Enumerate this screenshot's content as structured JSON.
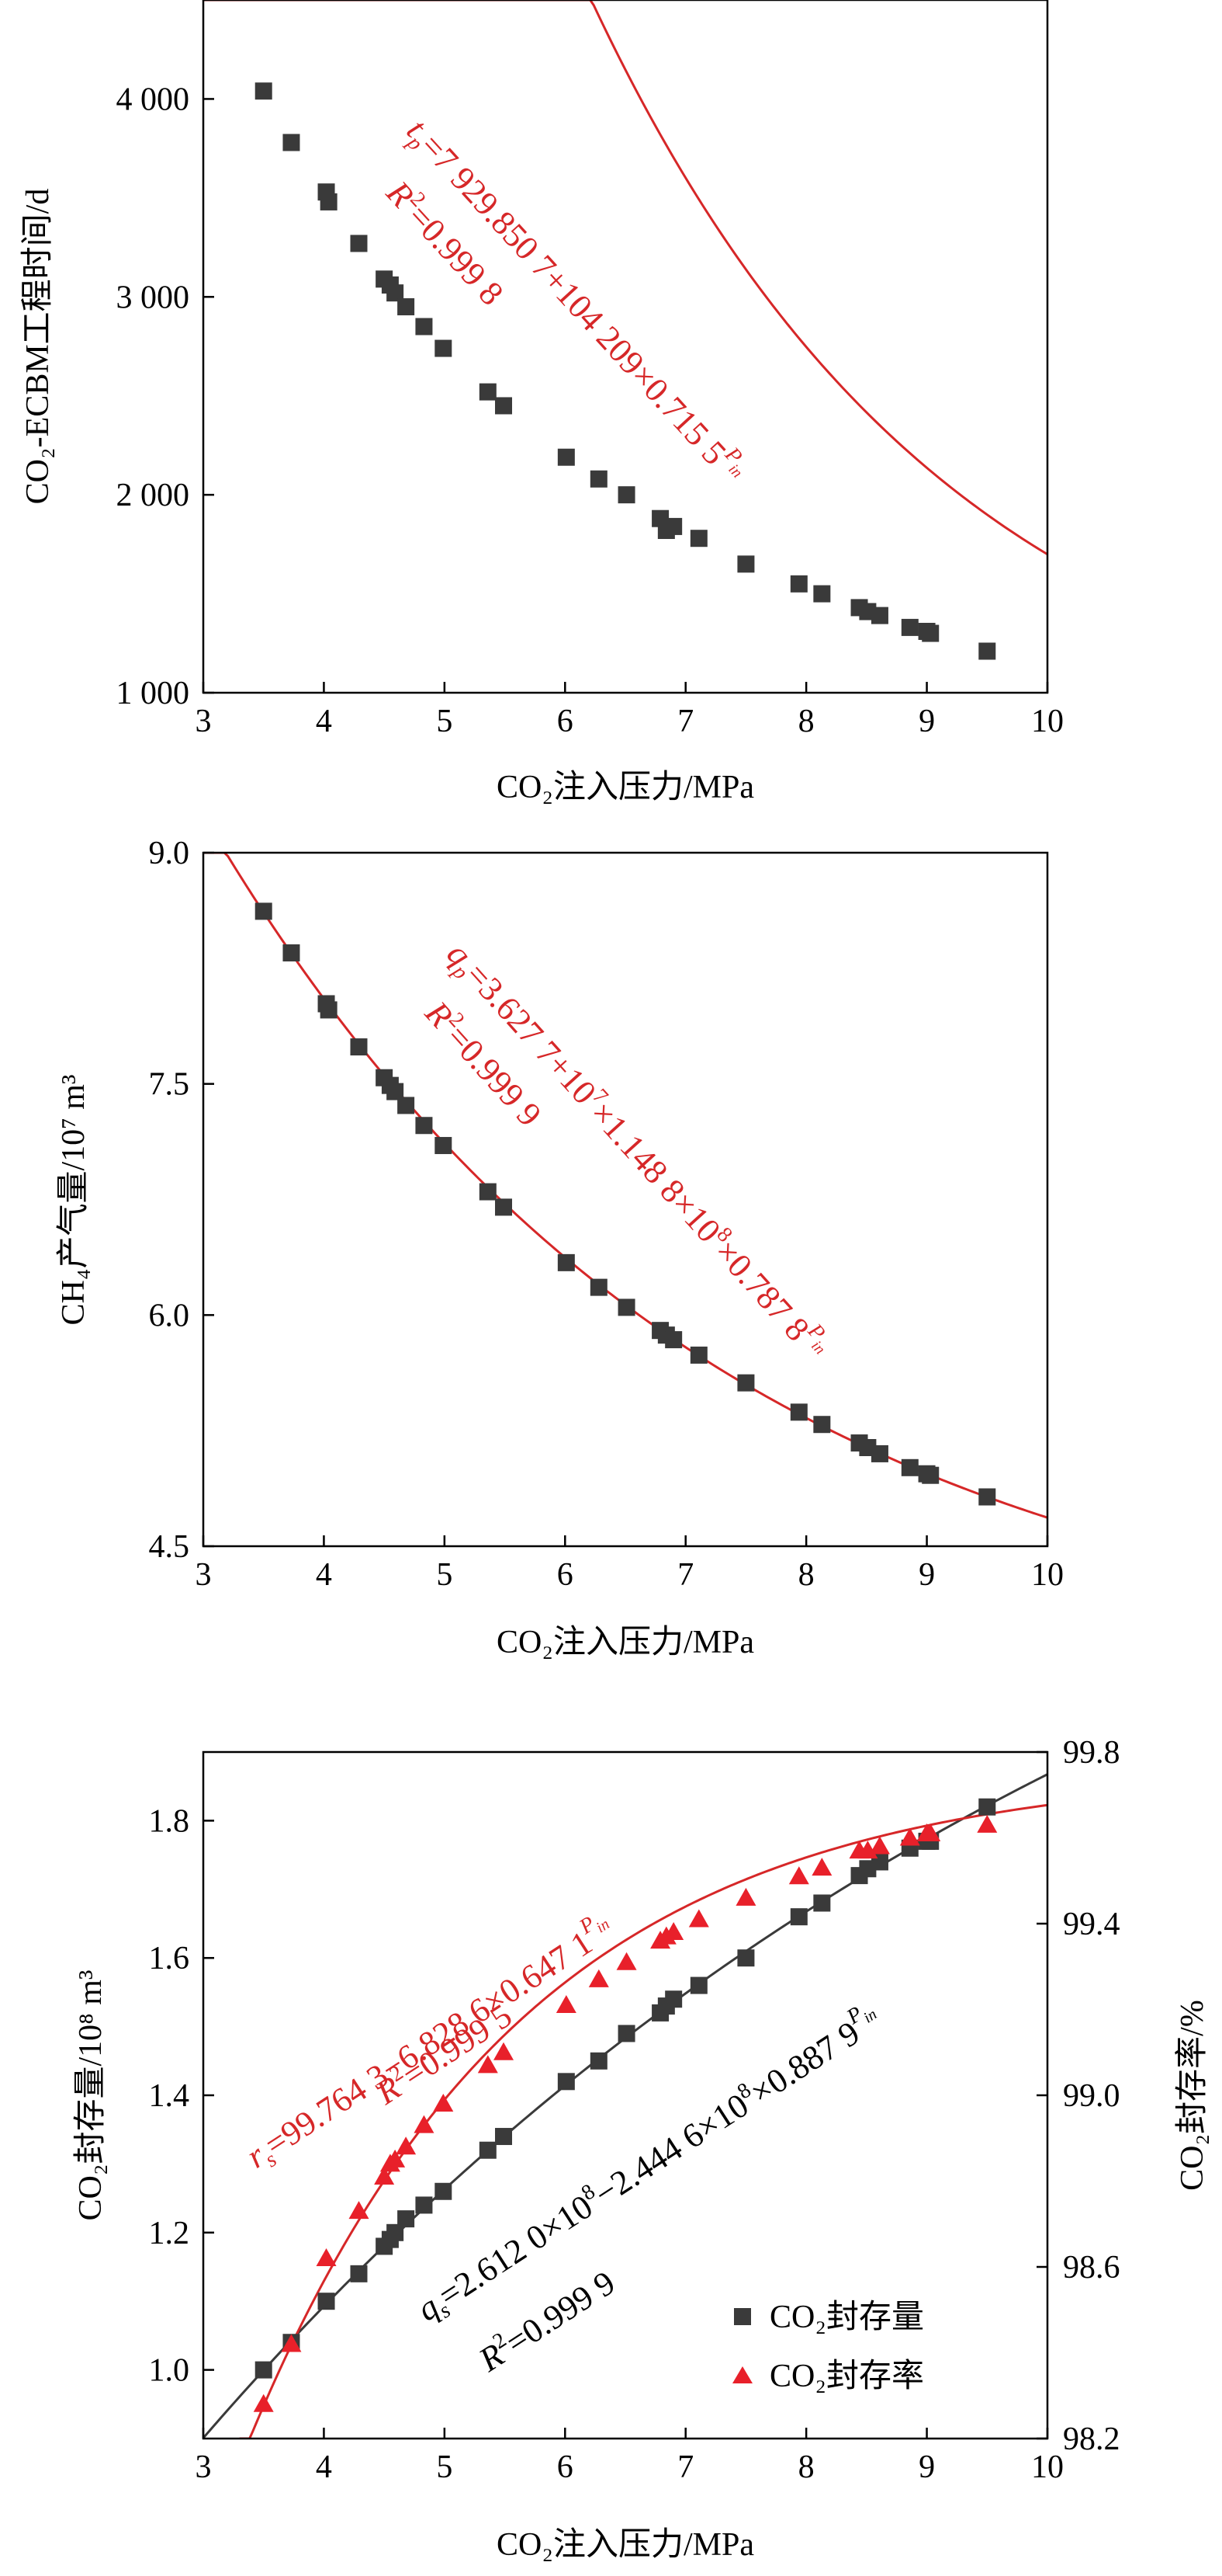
{
  "chart_data": [
    {
      "type": "scatter",
      "panel": "a",
      "xlabel": "CO₂注入压力/MPa",
      "ylabel": "CO₂-ECBM工程时间/d",
      "xlim": [
        3,
        10
      ],
      "ylim": [
        1000,
        4500
      ],
      "xticks": [
        3,
        4,
        5,
        6,
        7,
        8,
        9,
        10
      ],
      "xtick_labels": [
        "3",
        "4",
        "5",
        "6",
        "7",
        "8",
        "9",
        "10"
      ],
      "yticks": [
        1000,
        2000,
        3000,
        4000
      ],
      "ytick_labels": [
        "1 000",
        "2 000",
        "3 000",
        "4 000"
      ],
      "grid": false,
      "series": [
        {
          "marker": "square",
          "color": "#3a3a3a",
          "x": [
            3.5,
            3.73,
            4.02,
            4.04,
            4.29,
            4.5,
            4.55,
            4.59,
            4.68,
            4.83,
            4.99,
            5.36,
            5.49,
            6.01,
            6.28,
            6.51,
            6.79,
            6.84,
            6.9,
            7.11,
            7.5,
            7.94,
            8.13,
            8.44,
            8.51,
            8.61,
            8.86,
            9.0,
            9.03,
            9.5
          ],
          "y": [
            4040,
            3780,
            3530,
            3480,
            3270,
            3090,
            3060,
            3020,
            2950,
            2850,
            2740,
            2520,
            2450,
            2190,
            2080,
            2000,
            1880,
            1820,
            1840,
            1780,
            1650,
            1550,
            1500,
            1430,
            1410,
            1390,
            1330,
            1310,
            1300,
            1210
          ]
        }
      ],
      "fit": {
        "color": "#d62728",
        "annotation_parts": [
          "t",
          "p",
          "=7 929.850 7+104 209×0.715 5",
          "P",
          "in"
        ],
        "r2_parts": [
          "R",
          "2",
          "=0.999 8"
        ]
      }
    },
    {
      "type": "scatter",
      "panel": "b",
      "xlabel": "CO₂注入压力/MPa",
      "ylabel": "CH₄产气量/10⁷ m³",
      "xlim": [
        3,
        10
      ],
      "ylim": [
        4.5,
        9.0
      ],
      "xticks": [
        3,
        4,
        5,
        6,
        7,
        8,
        9,
        10
      ],
      "xtick_labels": [
        "3",
        "4",
        "5",
        "6",
        "7",
        "8",
        "9",
        "10"
      ],
      "yticks": [
        4.5,
        6.0,
        7.5,
        9.0
      ],
      "ytick_labels": [
        "4.5",
        "6.0",
        "7.5",
        "9.0"
      ],
      "grid": false,
      "series": [
        {
          "marker": "square",
          "color": "#3a3a3a",
          "x": [
            3.5,
            3.73,
            4.02,
            4.04,
            4.29,
            4.5,
            4.55,
            4.59,
            4.68,
            4.83,
            4.99,
            5.36,
            5.49,
            6.01,
            6.28,
            6.51,
            6.79,
            6.84,
            6.9,
            7.11,
            7.5,
            7.94,
            8.13,
            8.44,
            8.51,
            8.61,
            8.86,
            9.0,
            9.03,
            9.5
          ],
          "y": [
            8.62,
            8.35,
            8.02,
            7.98,
            7.74,
            7.54,
            7.49,
            7.45,
            7.36,
            7.23,
            7.1,
            6.8,
            6.7,
            6.34,
            6.18,
            6.05,
            5.9,
            5.87,
            5.84,
            5.74,
            5.56,
            5.37,
            5.29,
            5.17,
            5.14,
            5.1,
            5.01,
            4.97,
            4.96,
            4.82
          ]
        }
      ],
      "fit": {
        "color": "#d62728",
        "annotation_parts": [
          "q",
          "p",
          "=3.627 7+10",
          "7",
          "×1.148 8×10",
          "8",
          "×0.787 8",
          "P",
          "in"
        ],
        "r2_parts": [
          "R",
          "2",
          "=0.999 9"
        ]
      }
    },
    {
      "type": "scatter",
      "panel": "c",
      "xlabel": "CO₂注入压力/MPa",
      "ylabel": "CO₂封存量/10⁸ m³",
      "y2label": "CO₂封存率/%",
      "xlim": [
        3,
        10
      ],
      "ylim": [
        0.9,
        1.9
      ],
      "y2lim": [
        98.2,
        99.8
      ],
      "xticks": [
        3,
        4,
        5,
        6,
        7,
        8,
        9,
        10
      ],
      "xtick_labels": [
        "3",
        "4",
        "5",
        "6",
        "7",
        "8",
        "9",
        "10"
      ],
      "yticks": [
        1.0,
        1.2,
        1.4,
        1.6,
        1.8
      ],
      "ytick_labels": [
        "1.0",
        "1.2",
        "1.4",
        "1.6",
        "1.8"
      ],
      "y2ticks": [
        98.2,
        98.6,
        99.0,
        99.4,
        99.8
      ],
      "y2tick_labels": [
        "98.2",
        "98.6",
        "99.0",
        "99.4",
        "99.8"
      ],
      "grid": false,
      "legend_position": "bottom-right",
      "series": [
        {
          "name": "CO₂封存量",
          "axis": "left",
          "marker": "square",
          "color": "#3a3a3a",
          "x": [
            3.5,
            3.73,
            4.02,
            4.29,
            4.5,
            4.55,
            4.59,
            4.68,
            4.83,
            4.99,
            5.36,
            5.49,
            6.01,
            6.28,
            6.51,
            6.79,
            6.84,
            6.9,
            7.11,
            7.5,
            7.94,
            8.13,
            8.44,
            8.51,
            8.61,
            8.86,
            9.0,
            9.03,
            9.5
          ],
          "y": [
            1.0,
            1.04,
            1.1,
            1.14,
            1.18,
            1.19,
            1.2,
            1.22,
            1.24,
            1.26,
            1.32,
            1.34,
            1.42,
            1.45,
            1.49,
            1.52,
            1.53,
            1.54,
            1.56,
            1.6,
            1.66,
            1.68,
            1.72,
            1.73,
            1.74,
            1.76,
            1.77,
            1.77,
            1.82
          ]
        },
        {
          "name": "CO₂封存率",
          "axis": "right",
          "marker": "triangle",
          "color": "#e8202a",
          "x": [
            3.5,
            3.73,
            4.02,
            4.29,
            4.5,
            4.55,
            4.59,
            4.68,
            4.83,
            4.99,
            5.36,
            5.49,
            6.01,
            6.28,
            6.51,
            6.79,
            6.84,
            6.9,
            7.11,
            7.5,
            7.94,
            8.13,
            8.44,
            8.51,
            8.61,
            8.86,
            9.0,
            9.03,
            9.5
          ],
          "y": [
            98.28,
            98.42,
            98.62,
            98.73,
            98.81,
            98.84,
            98.85,
            98.88,
            98.93,
            98.98,
            99.07,
            99.1,
            99.21,
            99.27,
            99.31,
            99.36,
            99.37,
            99.38,
            99.41,
            99.46,
            99.51,
            99.53,
            99.57,
            99.57,
            99.58,
            99.6,
            99.61,
            99.61,
            99.63
          ]
        }
      ],
      "fits": [
        {
          "color": "#3a3a3a",
          "annotation_parts": [
            "q",
            "s",
            "=2.612 0×10",
            "8",
            "−2.444 6×10",
            "8",
            "×0.887 9",
            "P",
            "in"
          ],
          "r2_parts": [
            "R",
            "2",
            "=0.999 9"
          ]
        },
        {
          "color": "#d62728",
          "annotation_parts": [
            "r",
            "s",
            "=99.764 3−6.828 6×0.647 1",
            "P",
            "in"
          ],
          "r2_parts": [
            "R",
            "2",
            "=0.999 5"
          ]
        }
      ]
    }
  ]
}
